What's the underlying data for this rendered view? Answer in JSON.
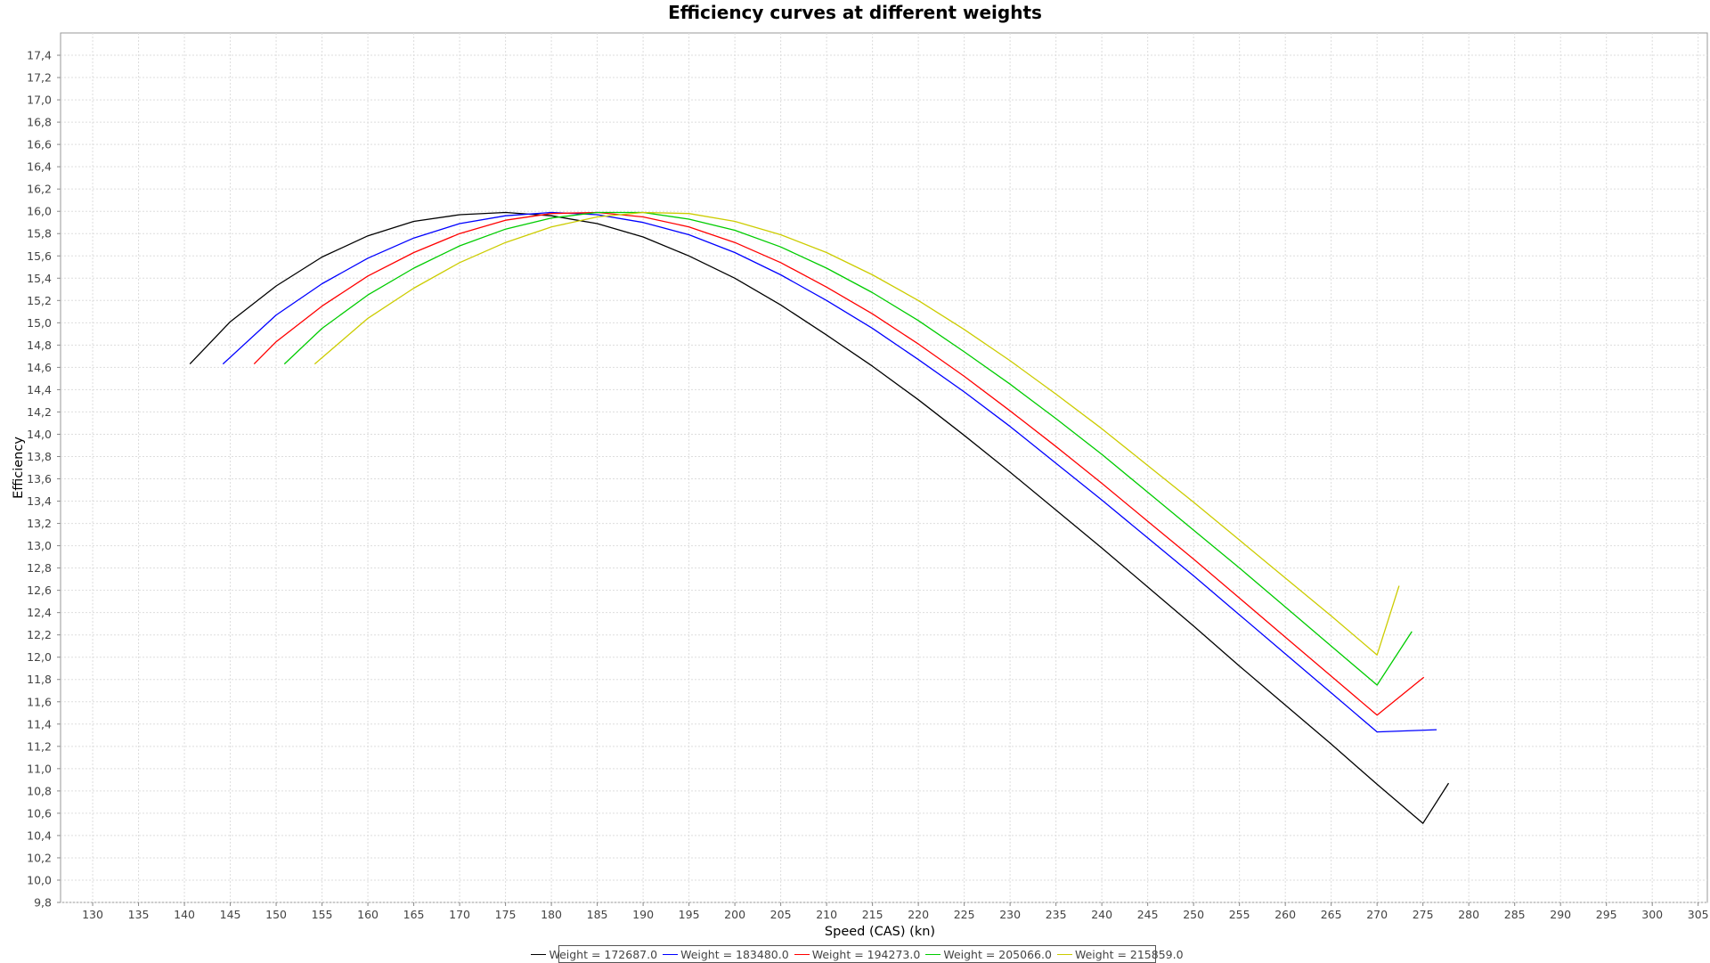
{
  "chart_data": {
    "type": "line",
    "title": "Efficiency curves at different weights",
    "xlabel": "Speed (CAS) (kn)",
    "ylabel": "Efficiency",
    "xlim": [
      126.5,
      306
    ],
    "ylim": [
      9.8,
      17.6
    ],
    "grid": true,
    "legend_position": "bottom-center",
    "x_ticks": [
      "130",
      "135",
      "140",
      "145",
      "150",
      "155",
      "160",
      "165",
      "170",
      "175",
      "180",
      "185",
      "190",
      "195",
      "200",
      "205",
      "210",
      "215",
      "220",
      "225",
      "230",
      "235",
      "240",
      "245",
      "250",
      "255",
      "260",
      "265",
      "270",
      "275",
      "280",
      "285",
      "290",
      "295",
      "300",
      "305"
    ],
    "y_ticks": [
      "9,8",
      "10,0",
      "10,2",
      "10,4",
      "10,6",
      "10,8",
      "11,0",
      "11,2",
      "11,4",
      "11,6",
      "11,8",
      "12,0",
      "12,2",
      "12,4",
      "12,6",
      "12,8",
      "13,0",
      "13,2",
      "13,4",
      "13,6",
      "13,8",
      "14,0",
      "14,2",
      "14,4",
      "14,6",
      "14,8",
      "15,0",
      "15,2",
      "15,4",
      "15,6",
      "15,8",
      "16,0",
      "16,2",
      "16,4",
      "16,6",
      "16,8",
      "17,0",
      "17,2",
      "17,4"
    ],
    "series": [
      {
        "name": "Weight = 172687.0",
        "color": "#000000",
        "x": [
          140.6,
          145,
          150,
          155,
          160,
          165,
          170,
          175,
          180,
          185,
          190,
          195,
          200,
          205,
          210,
          215,
          220,
          225,
          230,
          235,
          240,
          245,
          250,
          255,
          260,
          265,
          270,
          275,
          277.8
        ],
        "y": [
          14.63,
          15.01,
          15.33,
          15.59,
          15.78,
          15.91,
          15.97,
          15.99,
          15.96,
          15.89,
          15.77,
          15.6,
          15.4,
          15.16,
          14.89,
          14.61,
          14.31,
          13.99,
          13.66,
          13.32,
          12.98,
          12.63,
          12.28,
          11.92,
          11.57,
          11.22,
          10.86,
          10.51,
          10.87
        ]
      },
      {
        "name": "Weight = 183480.0",
        "color": "#0000ff",
        "x": [
          144.2,
          150,
          155,
          160,
          165,
          170,
          175,
          180,
          185,
          190,
          195,
          200,
          205,
          210,
          215,
          220,
          225,
          230,
          235,
          240,
          245,
          250,
          255,
          260,
          265,
          270,
          276.5
        ],
        "y": [
          14.63,
          15.07,
          15.35,
          15.58,
          15.76,
          15.89,
          15.96,
          15.99,
          15.97,
          15.9,
          15.79,
          15.63,
          15.43,
          15.2,
          14.95,
          14.67,
          14.38,
          14.07,
          13.74,
          13.41,
          13.07,
          12.73,
          12.38,
          12.03,
          11.68,
          11.33,
          11.35
        ]
      },
      {
        "name": "Weight = 194273.0",
        "color": "#ff0000",
        "x": [
          147.6,
          150,
          155,
          160,
          165,
          170,
          175,
          180,
          185,
          190,
          195,
          200,
          205,
          210,
          215,
          220,
          225,
          230,
          235,
          240,
          245,
          250,
          255,
          260,
          265,
          270,
          275.1
        ],
        "y": [
          14.63,
          14.83,
          15.15,
          15.42,
          15.63,
          15.8,
          15.92,
          15.98,
          15.99,
          15.95,
          15.86,
          15.72,
          15.54,
          15.32,
          15.08,
          14.81,
          14.52,
          14.21,
          13.89,
          13.56,
          13.22,
          12.88,
          12.53,
          12.18,
          11.83,
          11.48,
          11.82
        ]
      },
      {
        "name": "Weight = 205066.0",
        "color": "#00cc00",
        "x": [
          150.9,
          155,
          160,
          165,
          170,
          175,
          180,
          185,
          190,
          195,
          200,
          205,
          210,
          215,
          220,
          225,
          230,
          235,
          240,
          245,
          250,
          255,
          260,
          265,
          270,
          273.8
        ],
        "y": [
          14.63,
          14.95,
          15.25,
          15.49,
          15.69,
          15.84,
          15.94,
          15.99,
          15.99,
          15.93,
          15.83,
          15.68,
          15.49,
          15.27,
          15.02,
          14.74,
          14.45,
          14.14,
          13.82,
          13.48,
          13.14,
          12.8,
          12.45,
          12.1,
          11.75,
          12.23
        ]
      },
      {
        "name": "Weight = 215859.0",
        "color": "#cccc00",
        "x": [
          154.2,
          160,
          165,
          170,
          175,
          180,
          185,
          190,
          195,
          200,
          205,
          210,
          215,
          220,
          225,
          230,
          235,
          240,
          245,
          250,
          255,
          260,
          265,
          270,
          272.4
        ],
        "y": [
          14.63,
          15.04,
          15.31,
          15.54,
          15.72,
          15.86,
          15.95,
          15.99,
          15.98,
          15.91,
          15.79,
          15.63,
          15.43,
          15.2,
          14.94,
          14.66,
          14.36,
          14.05,
          13.72,
          13.39,
          13.05,
          12.71,
          12.37,
          12.02,
          12.64
        ]
      }
    ]
  }
}
